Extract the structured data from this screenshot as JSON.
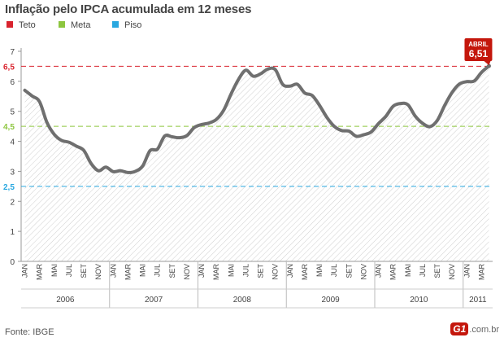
{
  "title": "Inflação pelo IPCA acumulada em 12 meses",
  "legend": [
    {
      "label": "Teto",
      "color": "#d9232e"
    },
    {
      "label": "Meta",
      "color": "#8dc63f"
    },
    {
      "label": "Piso",
      "color": "#29a8e0"
    }
  ],
  "source": "Fonte: IBGE",
  "brand": {
    "logo": "G1",
    "suffix": ".com.br"
  },
  "chart_data": {
    "type": "area",
    "ylim": [
      0,
      7
    ],
    "yticks": [
      0,
      1,
      2,
      3,
      4,
      5,
      6,
      7
    ],
    "month_labels": [
      "JAN",
      "MAR",
      "MAI",
      "JUL",
      "SET",
      "NOV"
    ],
    "years": [
      "2006",
      "2007",
      "2008",
      "2009",
      "2010",
      "2011"
    ],
    "x": [
      "2006-01",
      "2006-02",
      "2006-03",
      "2006-04",
      "2006-05",
      "2006-06",
      "2006-07",
      "2006-08",
      "2006-09",
      "2006-10",
      "2006-11",
      "2006-12",
      "2007-01",
      "2007-02",
      "2007-03",
      "2007-04",
      "2007-05",
      "2007-06",
      "2007-07",
      "2007-08",
      "2007-09",
      "2007-10",
      "2007-11",
      "2007-12",
      "2008-01",
      "2008-02",
      "2008-03",
      "2008-04",
      "2008-05",
      "2008-06",
      "2008-07",
      "2008-08",
      "2008-09",
      "2008-10",
      "2008-11",
      "2008-12",
      "2009-01",
      "2009-02",
      "2009-03",
      "2009-04",
      "2009-05",
      "2009-06",
      "2009-07",
      "2009-08",
      "2009-09",
      "2009-10",
      "2009-11",
      "2009-12",
      "2010-01",
      "2010-02",
      "2010-03",
      "2010-04",
      "2010-05",
      "2010-06",
      "2010-07",
      "2010-08",
      "2010-09",
      "2010-10",
      "2010-11",
      "2010-12",
      "2011-01",
      "2011-02",
      "2011-03",
      "2011-04"
    ],
    "values": [
      5.7,
      5.51,
      5.32,
      4.63,
      4.23,
      4.03,
      3.97,
      3.84,
      3.7,
      3.26,
      3.02,
      3.14,
      2.99,
      3.02,
      2.96,
      3.0,
      3.18,
      3.69,
      3.74,
      4.18,
      4.15,
      4.12,
      4.19,
      4.46,
      4.56,
      4.61,
      4.73,
      5.04,
      5.58,
      6.06,
      6.37,
      6.17,
      6.25,
      6.41,
      6.39,
      5.9,
      5.84,
      5.9,
      5.61,
      5.53,
      5.2,
      4.8,
      4.5,
      4.36,
      4.34,
      4.17,
      4.22,
      4.31,
      4.59,
      4.83,
      5.17,
      5.26,
      5.22,
      4.84,
      4.6,
      4.49,
      4.7,
      5.2,
      5.63,
      5.91,
      5.99,
      6.01,
      6.3,
      6.51
    ],
    "reference_lines": [
      {
        "name": "Teto",
        "value": 6.5,
        "label": "6,5",
        "color": "#d9232e"
      },
      {
        "name": "Meta",
        "value": 4.5,
        "label": "4,5",
        "color": "#8dc63f"
      },
      {
        "name": "Piso",
        "value": 2.5,
        "label": "2,5",
        "color": "#29a8e0"
      }
    ],
    "callout": {
      "month": "ABRIL",
      "value": "6,51",
      "color": "#c4170c"
    },
    "line_color": "#6f6f6f",
    "grid": false
  }
}
